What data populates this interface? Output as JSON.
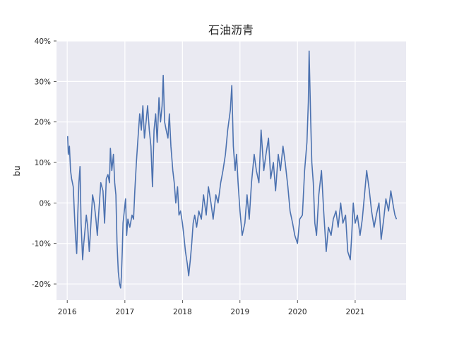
{
  "chart_data": {
    "type": "line",
    "title": "石油沥青",
    "xlabel": "",
    "ylabel": "bu",
    "y_unit": "%",
    "xlim": [
      "2015-10-25",
      "2021-11-20"
    ],
    "ylim": [
      -24,
      40
    ],
    "grid": true,
    "style": "seaborn-darkgrid",
    "x_ticks": [
      {
        "value": "2016-01-01",
        "label": "2016"
      },
      {
        "value": "2017-01-01",
        "label": "2017"
      },
      {
        "value": "2018-01-01",
        "label": "2018"
      },
      {
        "value": "2019-01-01",
        "label": "2019"
      },
      {
        "value": "2020-01-01",
        "label": "2020"
      },
      {
        "value": "2021-01-01",
        "label": "2021"
      }
    ],
    "y_ticks": [
      {
        "value": -20,
        "label": "-20%"
      },
      {
        "value": -10,
        "label": "-10%"
      },
      {
        "value": 0,
        "label": "0%"
      },
      {
        "value": 10,
        "label": "10%"
      },
      {
        "value": 20,
        "label": "20%"
      },
      {
        "value": 30,
        "label": "30%"
      },
      {
        "value": 40,
        "label": "40%"
      }
    ],
    "series": [
      {
        "color": "#4c72b0",
        "points": [
          [
            "2016-01-04",
            16.5
          ],
          [
            "2016-01-08",
            12
          ],
          [
            "2016-01-15",
            14
          ],
          [
            "2016-01-22",
            8
          ],
          [
            "2016-01-29",
            6
          ],
          [
            "2016-02-08",
            4
          ],
          [
            "2016-02-15",
            -2
          ],
          [
            "2016-02-22",
            -8
          ],
          [
            "2016-03-01",
            -12.5
          ],
          [
            "2016-03-08",
            -3
          ],
          [
            "2016-03-15",
            5
          ],
          [
            "2016-03-22",
            9
          ],
          [
            "2016-03-29",
            -5
          ],
          [
            "2016-04-08",
            -14
          ],
          [
            "2016-04-15",
            -10
          ],
          [
            "2016-04-22",
            -7
          ],
          [
            "2016-05-01",
            -3
          ],
          [
            "2016-05-10",
            -6
          ],
          [
            "2016-05-20",
            -12
          ],
          [
            "2016-06-01",
            -4
          ],
          [
            "2016-06-10",
            2
          ],
          [
            "2016-06-20",
            0
          ],
          [
            "2016-07-01",
            -4
          ],
          [
            "2016-07-10",
            -8
          ],
          [
            "2016-07-20",
            -2
          ],
          [
            "2016-08-01",
            5
          ],
          [
            "2016-08-15",
            3
          ],
          [
            "2016-08-25",
            -5
          ],
          [
            "2016-09-05",
            6
          ],
          [
            "2016-09-15",
            7
          ],
          [
            "2016-09-25",
            5
          ],
          [
            "2016-10-01",
            13.5
          ],
          [
            "2016-10-10",
            8
          ],
          [
            "2016-10-20",
            12
          ],
          [
            "2016-10-28",
            5
          ],
          [
            "2016-11-05",
            2
          ],
          [
            "2016-11-12",
            -10
          ],
          [
            "2016-11-20",
            -17
          ],
          [
            "2016-11-28",
            -20
          ],
          [
            "2016-12-05",
            -21
          ],
          [
            "2016-12-10",
            -18
          ],
          [
            "2016-12-15",
            -12
          ],
          [
            "2016-12-20",
            -5
          ],
          [
            "2016-12-28",
            -2
          ],
          [
            "2017-01-05",
            1
          ],
          [
            "2017-01-12",
            -8
          ],
          [
            "2017-01-20",
            -4
          ],
          [
            "2017-02-01",
            -6
          ],
          [
            "2017-02-15",
            -3
          ],
          [
            "2017-02-25",
            -4
          ],
          [
            "2017-03-05",
            3
          ],
          [
            "2017-03-15",
            10
          ],
          [
            "2017-03-25",
            16
          ],
          [
            "2017-04-05",
            22
          ],
          [
            "2017-04-15",
            18
          ],
          [
            "2017-04-25",
            24
          ],
          [
            "2017-05-05",
            16
          ],
          [
            "2017-05-15",
            20
          ],
          [
            "2017-05-25",
            24
          ],
          [
            "2017-06-05",
            18
          ],
          [
            "2017-06-15",
            14
          ],
          [
            "2017-06-25",
            4
          ],
          [
            "2017-07-05",
            18
          ],
          [
            "2017-07-15",
            22
          ],
          [
            "2017-07-25",
            15
          ],
          [
            "2017-08-05",
            26
          ],
          [
            "2017-08-15",
            20
          ],
          [
            "2017-08-25",
            24
          ],
          [
            "2017-09-01",
            31.5
          ],
          [
            "2017-09-10",
            20
          ],
          [
            "2017-09-20",
            18
          ],
          [
            "2017-10-01",
            16
          ],
          [
            "2017-10-10",
            22
          ],
          [
            "2017-10-20",
            14
          ],
          [
            "2017-11-01",
            8
          ],
          [
            "2017-11-10",
            5
          ],
          [
            "2017-11-20",
            0
          ],
          [
            "2017-12-01",
            4
          ],
          [
            "2017-12-10",
            -3
          ],
          [
            "2017-12-20",
            -2
          ],
          [
            "2018-01-01",
            -5
          ],
          [
            "2018-01-10",
            -8
          ],
          [
            "2018-01-20",
            -12
          ],
          [
            "2018-02-01",
            -15
          ],
          [
            "2018-02-10",
            -18
          ],
          [
            "2018-02-20",
            -14
          ],
          [
            "2018-03-01",
            -10
          ],
          [
            "2018-03-10",
            -5
          ],
          [
            "2018-03-20",
            -3
          ],
          [
            "2018-04-01",
            -6
          ],
          [
            "2018-04-15",
            -2
          ],
          [
            "2018-05-01",
            -4
          ],
          [
            "2018-05-15",
            2
          ],
          [
            "2018-06-01",
            -3
          ],
          [
            "2018-06-15",
            4
          ],
          [
            "2018-07-01",
            0
          ],
          [
            "2018-07-15",
            -4
          ],
          [
            "2018-08-01",
            2
          ],
          [
            "2018-08-15",
            0
          ],
          [
            "2018-09-01",
            5
          ],
          [
            "2018-09-15",
            8
          ],
          [
            "2018-10-01",
            12
          ],
          [
            "2018-10-15",
            18
          ],
          [
            "2018-11-01",
            23
          ],
          [
            "2018-11-10",
            29
          ],
          [
            "2018-11-20",
            14
          ],
          [
            "2018-12-01",
            8
          ],
          [
            "2018-12-10",
            12
          ],
          [
            "2018-12-20",
            5
          ],
          [
            "2019-01-01",
            -2
          ],
          [
            "2019-01-15",
            -8
          ],
          [
            "2019-02-01",
            -5
          ],
          [
            "2019-02-15",
            2
          ],
          [
            "2019-03-01",
            -4
          ],
          [
            "2019-03-15",
            5
          ],
          [
            "2019-04-01",
            12
          ],
          [
            "2019-04-15",
            8
          ],
          [
            "2019-05-01",
            5
          ],
          [
            "2019-05-15",
            18
          ],
          [
            "2019-06-01",
            8
          ],
          [
            "2019-06-15",
            12
          ],
          [
            "2019-07-01",
            16
          ],
          [
            "2019-07-15",
            6
          ],
          [
            "2019-08-01",
            10
          ],
          [
            "2019-08-15",
            3
          ],
          [
            "2019-09-01",
            12
          ],
          [
            "2019-09-15",
            8
          ],
          [
            "2019-10-01",
            14
          ],
          [
            "2019-10-15",
            10
          ],
          [
            "2019-11-01",
            4
          ],
          [
            "2019-11-15",
            -2
          ],
          [
            "2019-12-01",
            -5
          ],
          [
            "2019-12-15",
            -8
          ],
          [
            "2020-01-01",
            -10
          ],
          [
            "2020-01-15",
            -4
          ],
          [
            "2020-02-01",
            -3
          ],
          [
            "2020-02-15",
            8
          ],
          [
            "2020-03-01",
            15
          ],
          [
            "2020-03-10",
            25
          ],
          [
            "2020-03-15",
            37.5
          ],
          [
            "2020-03-25",
            20
          ],
          [
            "2020-04-01",
            10
          ],
          [
            "2020-04-10",
            5
          ],
          [
            "2020-04-20",
            -5
          ],
          [
            "2020-05-01",
            -8
          ],
          [
            "2020-05-15",
            2
          ],
          [
            "2020-06-01",
            8
          ],
          [
            "2020-06-15",
            -2
          ],
          [
            "2020-07-01",
            -12
          ],
          [
            "2020-07-15",
            -6
          ],
          [
            "2020-08-01",
            -8
          ],
          [
            "2020-08-15",
            -4
          ],
          [
            "2020-09-01",
            -2
          ],
          [
            "2020-09-15",
            -6
          ],
          [
            "2020-10-01",
            0
          ],
          [
            "2020-10-15",
            -5
          ],
          [
            "2020-11-01",
            -3
          ],
          [
            "2020-11-15",
            -12
          ],
          [
            "2020-12-01",
            -14
          ],
          [
            "2020-12-10",
            -8
          ],
          [
            "2020-12-20",
            0
          ],
          [
            "2021-01-01",
            -5
          ],
          [
            "2021-01-15",
            -3
          ],
          [
            "2021-02-01",
            -8
          ],
          [
            "2021-02-15",
            -4
          ],
          [
            "2021-03-01",
            2
          ],
          [
            "2021-03-15",
            8
          ],
          [
            "2021-04-01",
            3
          ],
          [
            "2021-04-15",
            -2
          ],
          [
            "2021-05-01",
            -6
          ],
          [
            "2021-05-15",
            -3
          ],
          [
            "2021-06-01",
            0
          ],
          [
            "2021-06-15",
            -9
          ],
          [
            "2021-07-01",
            -4
          ],
          [
            "2021-07-15",
            1
          ],
          [
            "2021-08-01",
            -2
          ],
          [
            "2021-08-15",
            3
          ],
          [
            "2021-09-01",
            -1
          ],
          [
            "2021-09-10",
            -3
          ],
          [
            "2021-09-20",
            -4
          ]
        ]
      }
    ]
  }
}
